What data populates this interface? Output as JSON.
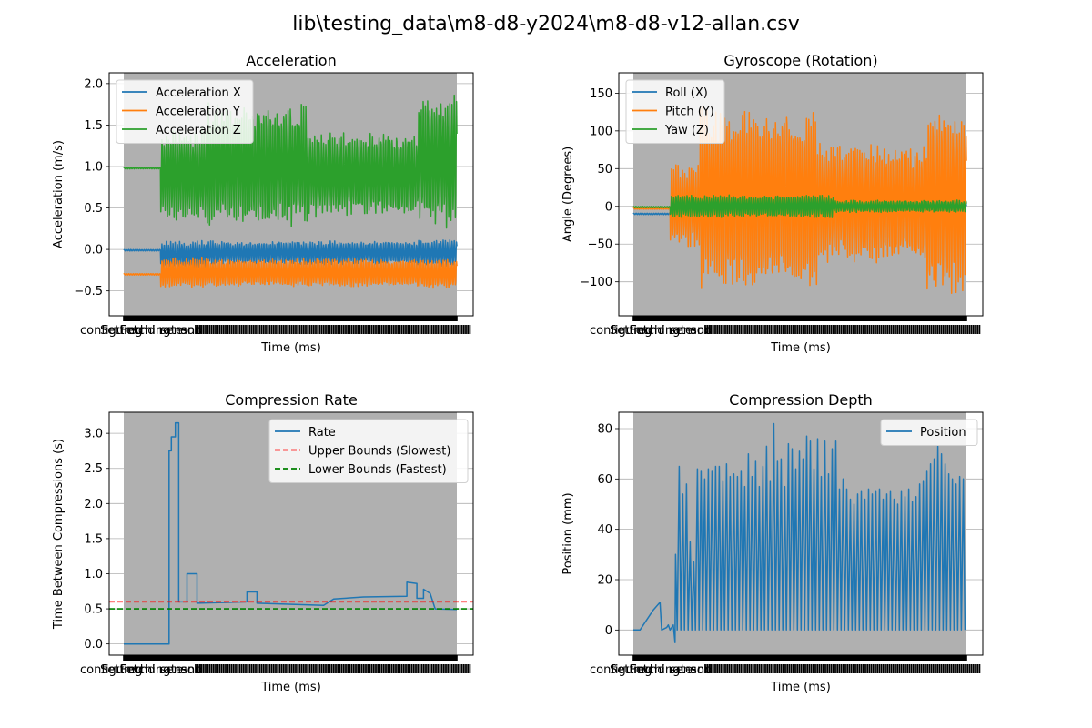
{
  "figure": {
    "title": "lib\\testing_data\\m8-d8-y2024\\m8-d8-v12-allan.csv"
  },
  "chart_data": [
    {
      "type": "line",
      "title": "Acceleration",
      "xlabel": "Time (ms)",
      "ylabel": "Acceleration (m/s)",
      "x_ticklabel_prefix": [
        "configured",
        "Setting",
        "Fetching",
        "nd rate",
        "sensor",
        "and"
      ],
      "ylim": [
        -0.8,
        2.13
      ],
      "yticks": [
        -0.5,
        0.0,
        0.5,
        1.0,
        1.5,
        2.0
      ],
      "ytick_labels": [
        "−0.5",
        "0.0",
        "0.5",
        "1.0",
        "1.5",
        "2.0"
      ],
      "grid": "y",
      "legend": "top-left",
      "background": "#b0b0b0",
      "series": [
        {
          "name": "Acceleration X",
          "color": "#1f77b4",
          "style": "osc",
          "segments": [
            {
              "t0": 0.0,
              "t1": 0.11,
              "base": -0.01,
              "amp": 0.01
            },
            {
              "t0": 0.11,
              "t1": 0.25,
              "base": -0.06,
              "amp": 0.16
            },
            {
              "t0": 0.25,
              "t1": 0.88,
              "base": -0.04,
              "amp": 0.14
            },
            {
              "t0": 0.88,
              "t1": 1.0,
              "base": -0.04,
              "amp": 0.16
            }
          ]
        },
        {
          "name": "Acceleration Y",
          "color": "#ff7f0e",
          "style": "osc",
          "segments": [
            {
              "t0": 0.0,
              "t1": 0.11,
              "base": -0.3,
              "amp": 0.01
            },
            {
              "t0": 0.11,
              "t1": 0.25,
              "base": -0.28,
              "amp": 0.18
            },
            {
              "t0": 0.25,
              "t1": 0.88,
              "base": -0.28,
              "amp": 0.17
            },
            {
              "t0": 0.88,
              "t1": 1.0,
              "base": -0.29,
              "amp": 0.18
            }
          ]
        },
        {
          "name": "Acceleration Z",
          "color": "#2ca02c",
          "style": "osc",
          "segments": [
            {
              "t0": 0.0,
              "t1": 0.11,
              "base": 0.98,
              "amp": 0.01
            },
            {
              "t0": 0.11,
              "t1": 0.25,
              "base": 0.9,
              "amp": 0.55
            },
            {
              "t0": 0.25,
              "t1": 0.55,
              "base": 1.0,
              "amp": 0.75
            },
            {
              "t0": 0.55,
              "t1": 0.88,
              "base": 0.9,
              "amp": 0.5
            },
            {
              "t0": 0.88,
              "t1": 1.0,
              "base": 1.05,
              "amp": 0.8
            }
          ]
        }
      ]
    },
    {
      "type": "line",
      "title": "Gyroscope (Rotation)",
      "xlabel": "Time (ms)",
      "ylabel": "Angle (Degrees)",
      "x_ticklabel_prefix": [
        "configured",
        "Setting",
        "Fetching",
        "nd rate",
        "sensor",
        "and"
      ],
      "ylim": [
        -145,
        177
      ],
      "yticks": [
        -100,
        -50,
        0,
        50,
        100,
        150
      ],
      "ytick_labels": [
        "−100",
        "−50",
        "0",
        "50",
        "100",
        "150"
      ],
      "grid": "y",
      "legend": "top-left",
      "background": "#b0b0b0",
      "series": [
        {
          "name": "Roll (X)",
          "color": "#1f77b4",
          "style": "osc",
          "segments": [
            {
              "t0": 0.0,
              "t1": 0.11,
              "base": -10,
              "amp": 1
            },
            {
              "t0": 0.11,
              "t1": 1.0,
              "base": -5,
              "amp": 12
            }
          ]
        },
        {
          "name": "Pitch (Y)",
          "color": "#ff7f0e",
          "style": "osc",
          "segments": [
            {
              "t0": 0.0,
              "t1": 0.11,
              "base": -3,
              "amp": 1
            },
            {
              "t0": 0.11,
              "t1": 0.2,
              "base": 0,
              "amp": 55
            },
            {
              "t0": 0.2,
              "t1": 0.55,
              "base": 10,
              "amp": 120
            },
            {
              "t0": 0.55,
              "t1": 0.88,
              "base": 5,
              "amp": 80
            },
            {
              "t0": 0.88,
              "t1": 1.0,
              "base": 5,
              "amp": 120
            }
          ]
        },
        {
          "name": "Yaw (Z)",
          "color": "#2ca02c",
          "style": "osc",
          "segments": [
            {
              "t0": 0.0,
              "t1": 0.11,
              "base": -1,
              "amp": 1
            },
            {
              "t0": 0.11,
              "t1": 0.6,
              "base": 0,
              "amp": 15
            },
            {
              "t0": 0.6,
              "t1": 1.0,
              "base": 0,
              "amp": 8
            }
          ]
        }
      ]
    },
    {
      "type": "line",
      "title": "Compression Rate",
      "xlabel": "Time (ms)",
      "ylabel": "Time Between Compressions (s)",
      "x_ticklabel_prefix": [
        "configured",
        "Setting",
        "Fetching",
        "nd rate",
        "sensor",
        "and"
      ],
      "ylim": [
        -0.16,
        3.3
      ],
      "yticks": [
        0.0,
        0.5,
        1.0,
        1.5,
        2.0,
        2.5,
        3.0
      ],
      "ytick_labels": [
        "0.0",
        "0.5",
        "1.0",
        "1.5",
        "2.0",
        "2.5",
        "3.0"
      ],
      "grid": "y",
      "legend": "top-right",
      "background": "#b0b0b0",
      "series": [
        {
          "name": "Rate",
          "color": "#1f77b4",
          "style": "step",
          "points": [
            [
              0.0,
              0.0
            ],
            [
              0.136,
              0.0
            ],
            [
              0.136,
              2.75
            ],
            [
              0.143,
              2.75
            ],
            [
              0.143,
              2.95
            ],
            [
              0.155,
              2.95
            ],
            [
              0.155,
              3.15
            ],
            [
              0.165,
              3.15
            ],
            [
              0.165,
              0.6
            ],
            [
              0.19,
              0.6
            ],
            [
              0.19,
              1.0
            ],
            [
              0.22,
              1.0
            ],
            [
              0.22,
              0.58
            ],
            [
              0.37,
              0.6
            ],
            [
              0.37,
              0.74
            ],
            [
              0.4,
              0.74
            ],
            [
              0.4,
              0.58
            ],
            [
              0.6,
              0.55
            ],
            [
              0.63,
              0.64
            ],
            [
              0.72,
              0.67
            ],
            [
              0.85,
              0.68
            ],
            [
              0.85,
              0.88
            ],
            [
              0.88,
              0.86
            ],
            [
              0.88,
              0.65
            ],
            [
              0.9,
              0.65
            ],
            [
              0.9,
              0.78
            ],
            [
              0.92,
              0.72
            ],
            [
              0.935,
              0.5
            ],
            [
              1.0,
              0.49
            ]
          ]
        },
        {
          "name": "Upper Bounds (Slowest)",
          "color": "#ff0000",
          "style": "hline",
          "value": 0.6
        },
        {
          "name": "Lower Bounds (Fastest)",
          "color": "#008000",
          "style": "hline",
          "value": 0.5
        }
      ]
    },
    {
      "type": "line",
      "title": "Compression Depth",
      "xlabel": "Time (ms)",
      "ylabel": "Position (mm)",
      "x_ticklabel_prefix": [
        "configured",
        "Setting",
        "Fetching",
        "nd rate",
        "sensor",
        "and"
      ],
      "ylim": [
        -10,
        86.5
      ],
      "yticks": [
        0,
        20,
        40,
        60,
        80
      ],
      "ytick_labels": [
        "0",
        "20",
        "40",
        "60",
        "80"
      ],
      "grid": "y",
      "legend": "top-right",
      "background": "#b0b0b0",
      "series": [
        {
          "name": "Position",
          "color": "#1f77b4",
          "style": "depth",
          "points": [
            [
              0.0,
              0.0
            ],
            [
              0.02,
              0.0
            ],
            [
              0.04,
              4.0
            ],
            [
              0.06,
              8.0
            ],
            [
              0.08,
              11.0
            ],
            [
              0.085,
              0.0
            ],
            [
              0.1,
              1.0
            ],
            [
              0.105,
              2.0
            ],
            [
              0.11,
              0.0
            ],
            [
              0.12,
              2.0
            ],
            [
              0.125,
              -5.0
            ]
          ],
          "peaks": [
            30,
            65,
            54,
            58,
            35,
            27,
            64,
            63,
            60,
            64,
            63,
            65,
            65,
            59,
            66,
            61,
            62,
            61,
            63,
            57,
            70,
            61,
            67,
            57,
            65,
            73,
            59,
            82,
            67,
            68,
            57,
            74,
            72,
            64,
            71,
            68,
            77,
            75,
            64,
            76,
            61,
            75,
            62,
            72,
            75,
            56,
            60,
            56,
            52,
            50,
            54,
            55,
            52,
            56,
            54,
            55,
            56,
            52,
            54,
            55,
            52,
            50,
            55,
            53,
            56,
            51,
            53,
            58,
            59,
            63,
            66,
            68,
            73,
            70,
            66,
            62,
            60,
            58,
            61,
            60
          ]
        }
      ]
    }
  ]
}
